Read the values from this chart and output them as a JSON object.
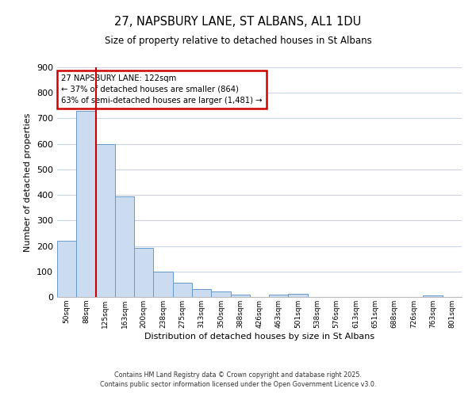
{
  "title": "27, NAPSBURY LANE, ST ALBANS, AL1 1DU",
  "subtitle": "Size of property relative to detached houses in St Albans",
  "xlabel": "Distribution of detached houses by size in St Albans",
  "ylabel": "Number of detached properties",
  "bar_color": "#ccdcf0",
  "bar_edge_color": "#6699cc",
  "background_color": "#ffffff",
  "grid_color": "#c8d4e8",
  "annotation_box_color": "#cc0000",
  "vline_color": "#cc0000",
  "bins": [
    "50sqm",
    "88sqm",
    "125sqm",
    "163sqm",
    "200sqm",
    "238sqm",
    "275sqm",
    "313sqm",
    "350sqm",
    "388sqm",
    "426sqm",
    "463sqm",
    "501sqm",
    "538sqm",
    "576sqm",
    "613sqm",
    "651sqm",
    "688sqm",
    "726sqm",
    "763sqm",
    "801sqm"
  ],
  "values": [
    220,
    730,
    600,
    395,
    192,
    100,
    55,
    32,
    22,
    10,
    0,
    10,
    12,
    0,
    0,
    0,
    0,
    0,
    0,
    5,
    0
  ],
  "vline_bin_index": 2,
  "annotation_line1": "27 NAPSBURY LANE: 122sqm",
  "annotation_line2": "← 37% of detached houses are smaller (864)",
  "annotation_line3": "63% of semi-detached houses are larger (1,481) →",
  "ylim": [
    0,
    900
  ],
  "yticks": [
    0,
    100,
    200,
    300,
    400,
    500,
    600,
    700,
    800,
    900
  ],
  "footer_line1": "Contains HM Land Registry data © Crown copyright and database right 2025.",
  "footer_line2": "Contains public sector information licensed under the Open Government Licence v3.0."
}
